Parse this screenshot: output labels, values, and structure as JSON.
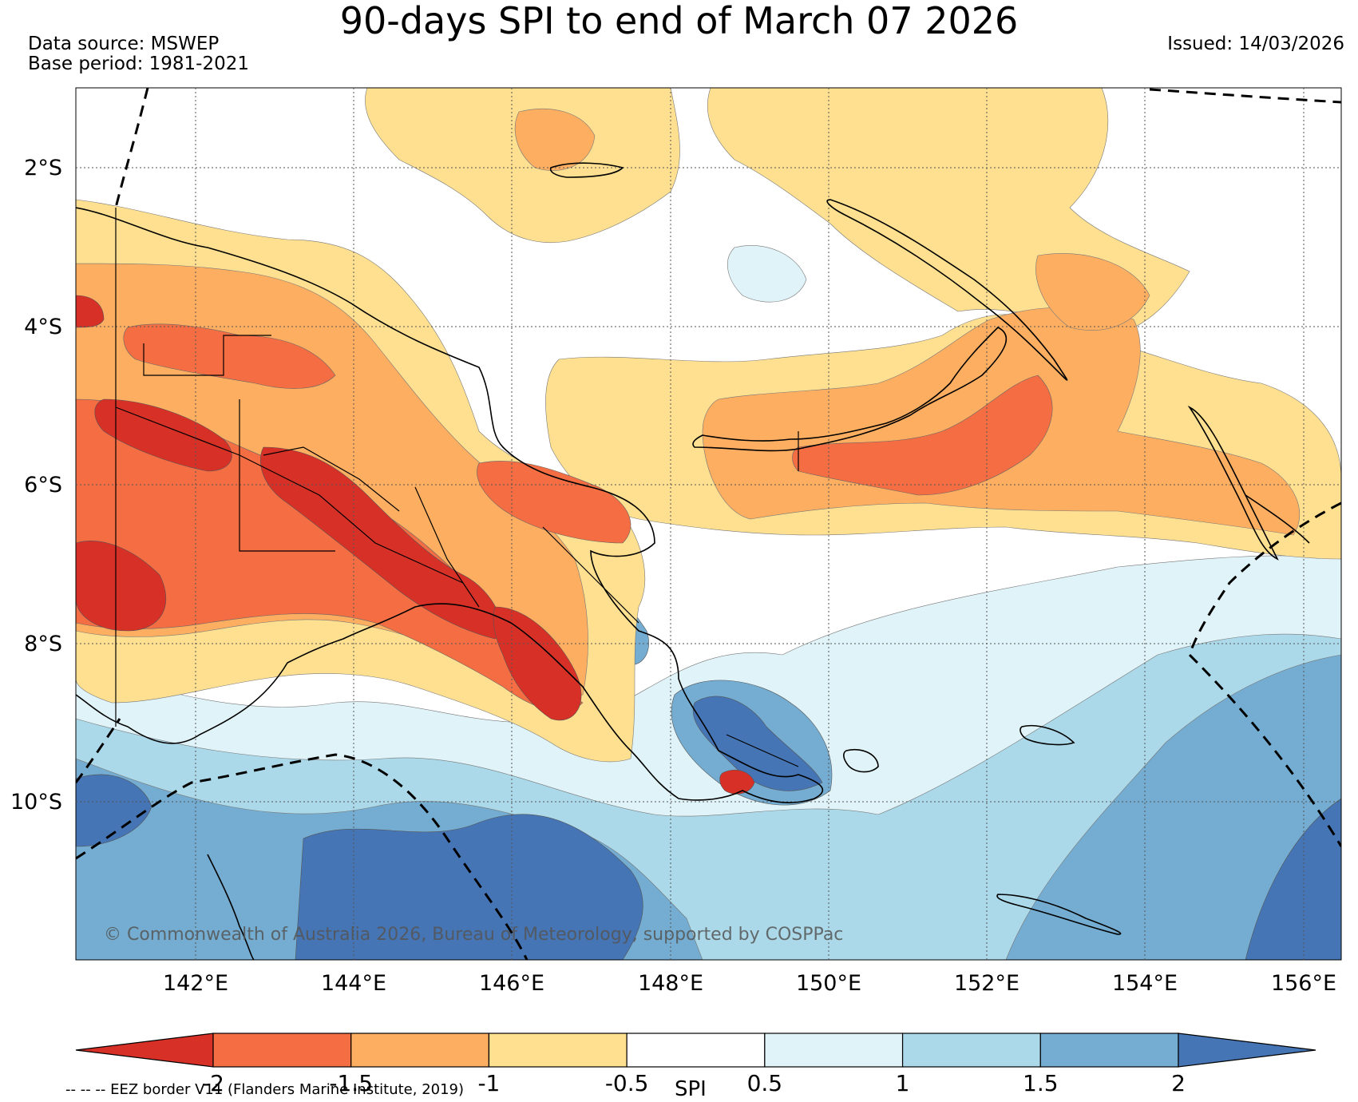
{
  "title": "90-days SPI to end of March 07 2026",
  "data_source": "Data source: MSWEP",
  "base_period": "Base period: 1981-2021",
  "issued": "Issued: 14/03/2026",
  "copyright": "© Commonwealth of Australia 2026, Bureau of Meteorology, supported by COSPPac",
  "eez_note": "-- -- -- EEZ border V11 (Flanders Marine Institute, 2019)",
  "colorbar": {
    "label": "SPI",
    "ticks": [
      "-2",
      "-1.5",
      "-1",
      "-0.5",
      "0.5",
      "1",
      "1.5",
      "2"
    ],
    "colors": [
      "#d73027",
      "#f46d43",
      "#fdae61",
      "#fee090",
      "#ffffff",
      "#e0f3f8",
      "#abd9e9",
      "#74add1",
      "#4575b4"
    ]
  },
  "map": {
    "lon_labels": [
      "142°E",
      "144°E",
      "146°E",
      "148°E",
      "150°E",
      "152°E",
      "154°E",
      "156°E"
    ],
    "lat_labels": [
      "2°S",
      "4°S",
      "6°S",
      "8°S",
      "10°S"
    ]
  }
}
